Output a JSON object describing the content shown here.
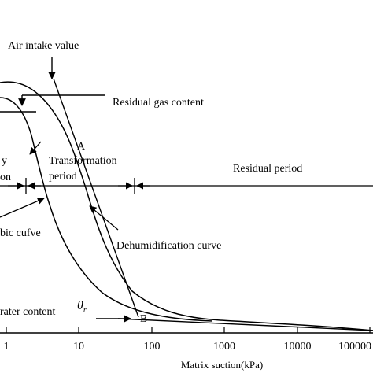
{
  "labels": {
    "air_intake": "Air intake value",
    "residual_gas": "Residual gas content",
    "point_a": "A",
    "transformation_1": "Transformation",
    "transformation_2": "period",
    "residual_period": "Residual period",
    "left_frag_1": "y",
    "left_frag_2": "on",
    "adsorption_frag": "bic cufve",
    "dehumidification": "Dehumidification curve",
    "water_content_frag": "rater content",
    "theta": "θ",
    "theta_sub": "r",
    "point_b": "B"
  },
  "x_axis": {
    "title": "Matrix suction(kPa)",
    "ticks": [
      "1",
      "10",
      "100",
      "1000",
      "10000",
      "100000"
    ]
  },
  "colors": {
    "ink": "#000000",
    "background": "#ffffff"
  }
}
